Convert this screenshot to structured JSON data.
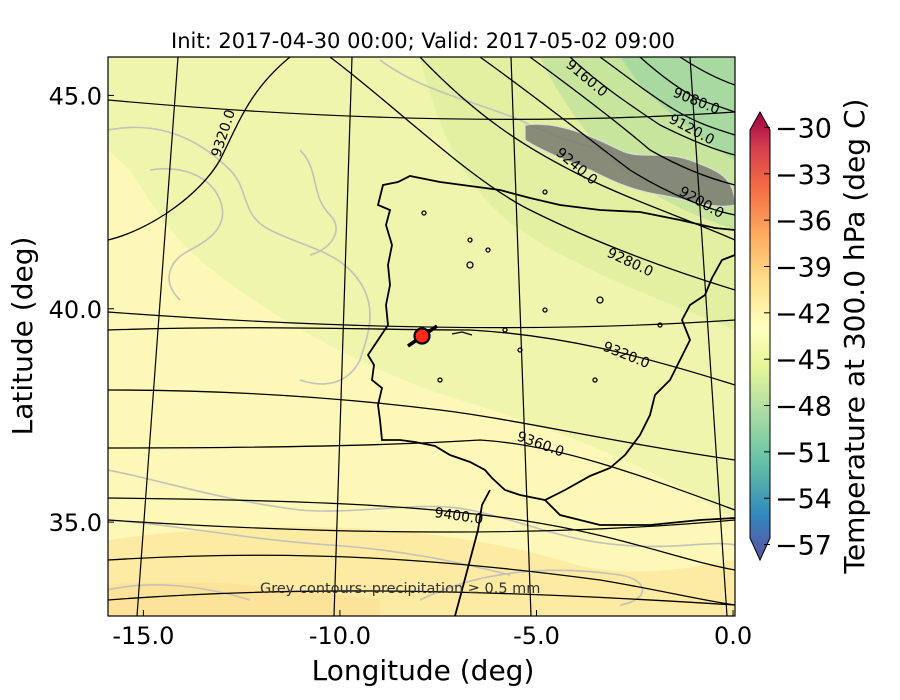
{
  "chart_data": {
    "type": "heatmap",
    "title": "Init: 2017-04-30 00:00; Valid: 2017-05-02 09:00",
    "xlabel": "Longitude (deg)",
    "ylabel": "Latitude (deg)",
    "xlim": [
      -15.9,
      0.05
    ],
    "ylim": [
      32.8,
      45.9
    ],
    "x_ticks": [
      {
        "value": -15,
        "label": "-15.0"
      },
      {
        "value": -10,
        "label": "-10.0"
      },
      {
        "value": -5,
        "label": "-5.0"
      },
      {
        "value": 0,
        "label": "0.0"
      }
    ],
    "y_ticks": [
      {
        "value": 35,
        "label": "35.0"
      },
      {
        "value": 40,
        "label": "40.0"
      },
      {
        "value": 45,
        "label": "45.0"
      }
    ],
    "colorbar": {
      "label": "Temperature at 300.0 hPa (deg C)",
      "min": -58,
      "max": -29,
      "ticks": [
        {
          "value": -30,
          "label": "−30"
        },
        {
          "value": -33,
          "label": "−33"
        },
        {
          "value": -36,
          "label": "−36"
        },
        {
          "value": -39,
          "label": "−39"
        },
        {
          "value": -42,
          "label": "−42"
        },
        {
          "value": -45,
          "label": "−45"
        },
        {
          "value": -48,
          "label": "−48"
        },
        {
          "value": -51,
          "label": "−51"
        },
        {
          "value": -54,
          "label": "−54"
        },
        {
          "value": -57,
          "label": "−57"
        }
      ]
    },
    "height_contour_labels": [
      "9080.0",
      "9120.0",
      "9160.0",
      "9200.0",
      "9240.0",
      "9280.0",
      "9320.0",
      "9320.0",
      "9360.0",
      "9400.0"
    ],
    "marker": {
      "lon": -7.6,
      "lat": 39.3,
      "color": "#ff2a1a"
    },
    "annotation": "Grey contours: precipitation ≥ 0.5 mm"
  }
}
